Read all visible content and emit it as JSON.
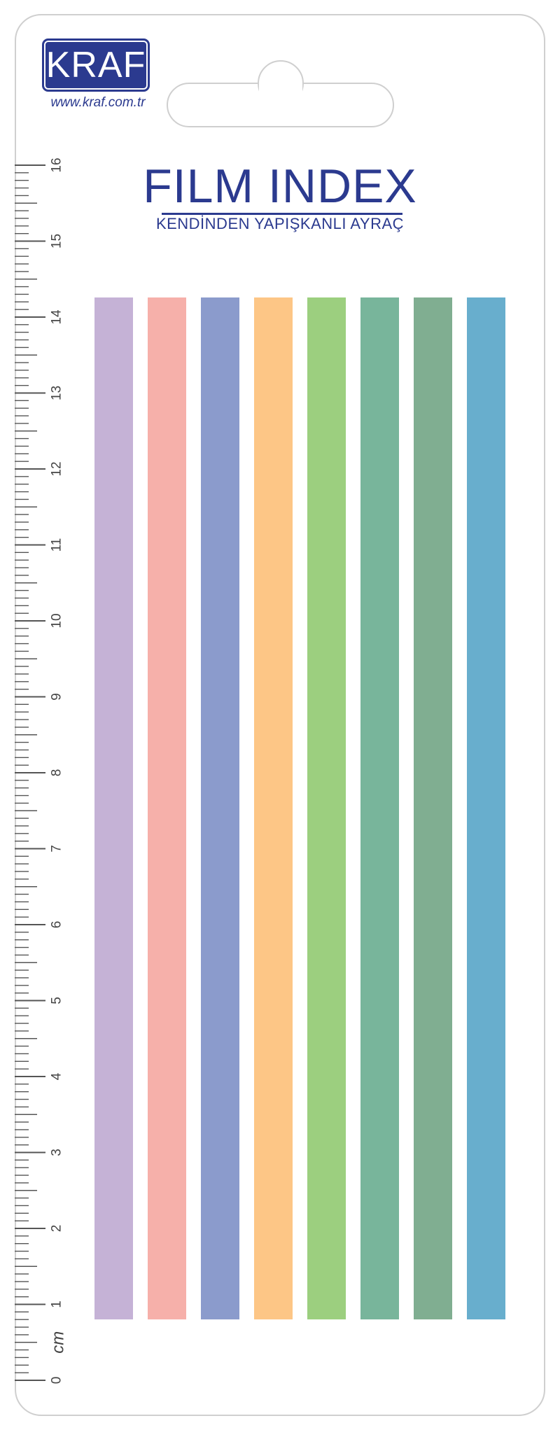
{
  "brand": {
    "logo_text": "KRAF",
    "website": "www.kraf.com.tr",
    "color": "#2b3a8f"
  },
  "product": {
    "title": "FILM INDEX",
    "subtitle": "KENDİNDEN YAPIŞKANLI AYRAÇ"
  },
  "ruler": {
    "unit_label": "cm",
    "min": 0,
    "max": 16,
    "labels": [
      "0",
      "1",
      "2",
      "3",
      "4",
      "5",
      "6",
      "7",
      "8",
      "9",
      "10",
      "11",
      "12",
      "13",
      "14",
      "15",
      "16"
    ]
  },
  "flags": [
    {
      "color": "#c5b2d6"
    },
    {
      "color": "#f6b0aa"
    },
    {
      "color": "#8b9bcc"
    },
    {
      "color": "#fdc686"
    },
    {
      "color": "#9ccf7f"
    },
    {
      "color": "#78b59b"
    },
    {
      "color": "#80ae91"
    },
    {
      "color": "#68aecd"
    }
  ]
}
